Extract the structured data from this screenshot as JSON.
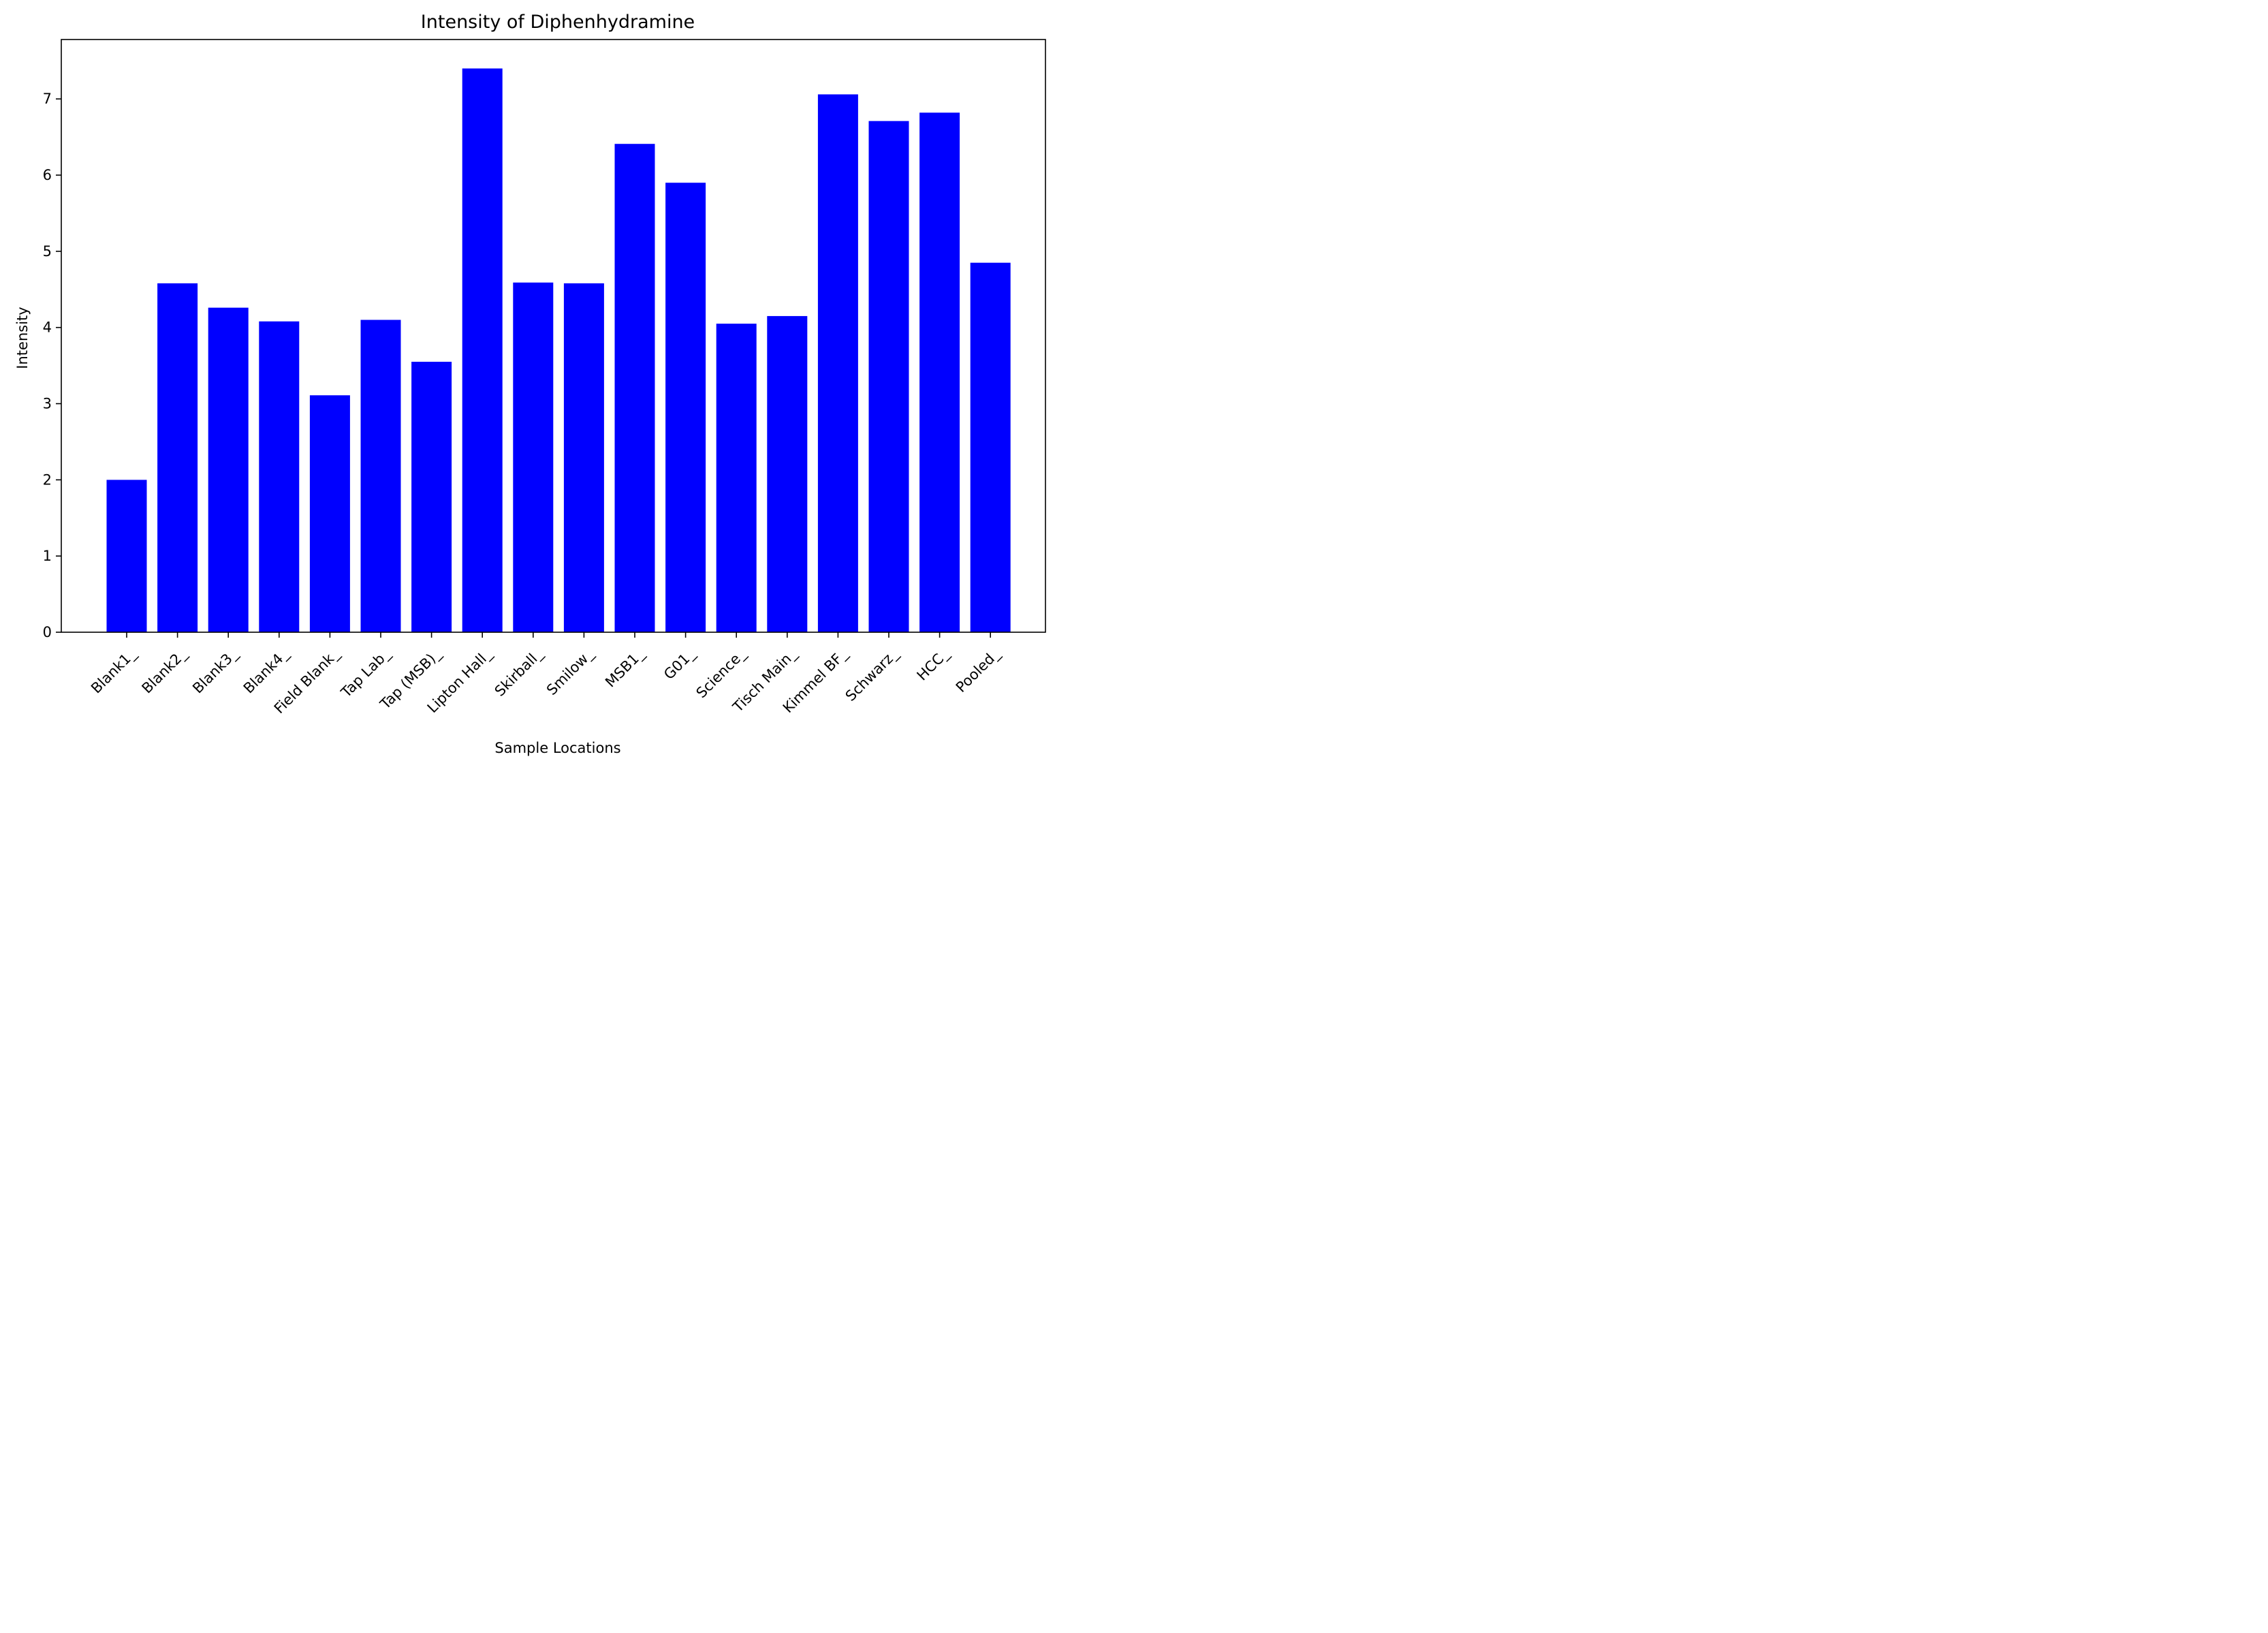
{
  "chart_data": {
    "type": "bar",
    "title": "Intensity of Diphenhydramine",
    "xlabel": "Sample Locations",
    "ylabel": "Intensity",
    "categories": [
      "Blank1_",
      "Blank2_",
      "Blank3_",
      "Blank4_",
      "Field Blank_",
      "Tap Lab_",
      "Tap (MSB)_",
      "Lipton Hall_",
      "Skirball_",
      "Smilow_",
      "MSB1_",
      "G01_",
      "Science_",
      "Tisch Main_",
      "Kimmel BF_",
      "Schwarz_",
      "HCC_",
      "Pooled_"
    ],
    "values": [
      2.0,
      4.58,
      4.26,
      4.08,
      3.11,
      4.1,
      3.55,
      7.4,
      4.59,
      4.58,
      6.41,
      5.9,
      4.05,
      4.15,
      7.06,
      6.71,
      6.82,
      4.85
    ],
    "yticks": [
      0,
      1,
      2,
      3,
      4,
      5,
      6,
      7
    ],
    "ylim": [
      0,
      7.78
    ],
    "bar_color": "#0000ff",
    "grid": false,
    "legend": "none"
  }
}
